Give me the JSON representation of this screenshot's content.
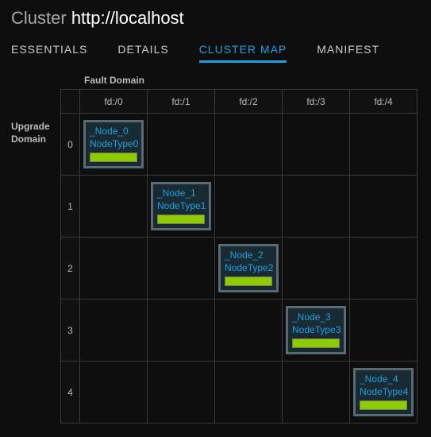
{
  "header": {
    "label": "Cluster",
    "url": "http://localhost"
  },
  "tabs": {
    "items": [
      "ESSENTIALS",
      "DETAILS",
      "CLUSTER MAP",
      "MANIFEST"
    ],
    "active_index": 2,
    "active_color": "#1ba1e2"
  },
  "axis": {
    "fault_label": "Fault Domain",
    "upgrade_label": "Upgrade\nDomain",
    "fault_domains": [
      "fd:/0",
      "fd:/1",
      "fd:/2",
      "fd:/3",
      "fd:/4"
    ],
    "upgrade_domains": [
      "0",
      "1",
      "2",
      "3",
      "4"
    ]
  },
  "nodes": [
    {
      "ud": 0,
      "fd": 0,
      "name": "_Node_0",
      "type": "NodeType0",
      "health_color": "#8ccc00"
    },
    {
      "ud": 1,
      "fd": 1,
      "name": "_Node_1",
      "type": "NodeType1",
      "health_color": "#8ccc00"
    },
    {
      "ud": 2,
      "fd": 2,
      "name": "_Node_2",
      "type": "NodeType2",
      "health_color": "#8ccc00"
    },
    {
      "ud": 3,
      "fd": 3,
      "name": "_Node_3",
      "type": "NodeType3",
      "health_color": "#8ccc00"
    },
    {
      "ud": 4,
      "fd": 4,
      "name": "_Node_4",
      "type": "NodeType4",
      "health_color": "#8ccc00"
    }
  ],
  "style": {
    "bg": "#0e0e0e",
    "grid_border": "#3a3a3a",
    "node_border": "#5a6a72",
    "node_bg": "#1a2a32",
    "link_color": "#1ba1e2",
    "text_muted": "#bbbbbb"
  }
}
